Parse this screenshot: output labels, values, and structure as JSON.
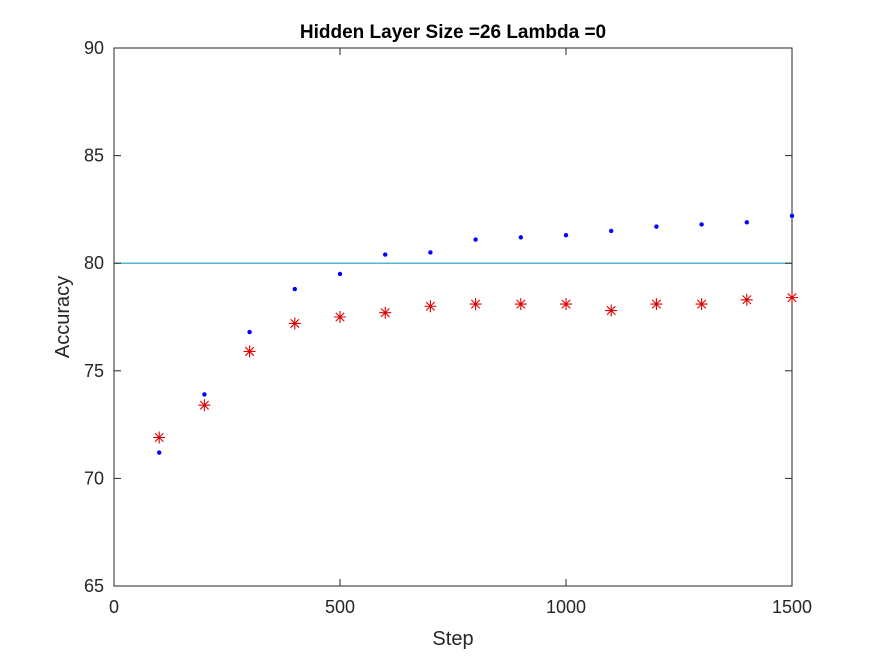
{
  "chart_data": {
    "type": "scatter",
    "title": "Hidden Layer Size =26 Lambda =0",
    "xlabel": "Step",
    "ylabel": "Accuracy",
    "xlim": [
      0,
      1500
    ],
    "ylim": [
      65,
      90
    ],
    "xticks": [
      0,
      500,
      1000,
      1500
    ],
    "yticks": [
      65,
      70,
      75,
      80,
      85,
      90
    ],
    "grid": false,
    "legend": "none",
    "series": [
      {
        "marker": "dot",
        "color": "#0000ff",
        "points": [
          {
            "x": 100,
            "y": 71.2
          },
          {
            "x": 200,
            "y": 73.9
          },
          {
            "x": 300,
            "y": 76.8
          },
          {
            "x": 400,
            "y": 78.8
          },
          {
            "x": 500,
            "y": 79.5
          },
          {
            "x": 600,
            "y": 80.4
          },
          {
            "x": 700,
            "y": 80.5
          },
          {
            "x": 800,
            "y": 81.1
          },
          {
            "x": 900,
            "y": 81.2
          },
          {
            "x": 1000,
            "y": 81.3
          },
          {
            "x": 1100,
            "y": 81.5
          },
          {
            "x": 1200,
            "y": 81.7
          },
          {
            "x": 1300,
            "y": 81.8
          },
          {
            "x": 1400,
            "y": 81.9
          },
          {
            "x": 1500,
            "y": 82.2
          }
        ]
      },
      {
        "marker": "asterisk",
        "color": "#e00000",
        "points": [
          {
            "x": 100,
            "y": 71.9
          },
          {
            "x": 200,
            "y": 73.4
          },
          {
            "x": 300,
            "y": 75.9
          },
          {
            "x": 400,
            "y": 77.2
          },
          {
            "x": 500,
            "y": 77.5
          },
          {
            "x": 600,
            "y": 77.7
          },
          {
            "x": 700,
            "y": 78.0
          },
          {
            "x": 800,
            "y": 78.1
          },
          {
            "x": 900,
            "y": 78.1
          },
          {
            "x": 1000,
            "y": 78.1
          },
          {
            "x": 1100,
            "y": 77.8
          },
          {
            "x": 1200,
            "y": 78.1
          },
          {
            "x": 1300,
            "y": 78.1
          },
          {
            "x": 1400,
            "y": 78.3
          },
          {
            "x": 1500,
            "y": 78.4
          }
        ]
      }
    ],
    "reference_lines": [
      {
        "orientation": "horizontal",
        "y": 80,
        "color": "#1f9fbf"
      }
    ]
  }
}
